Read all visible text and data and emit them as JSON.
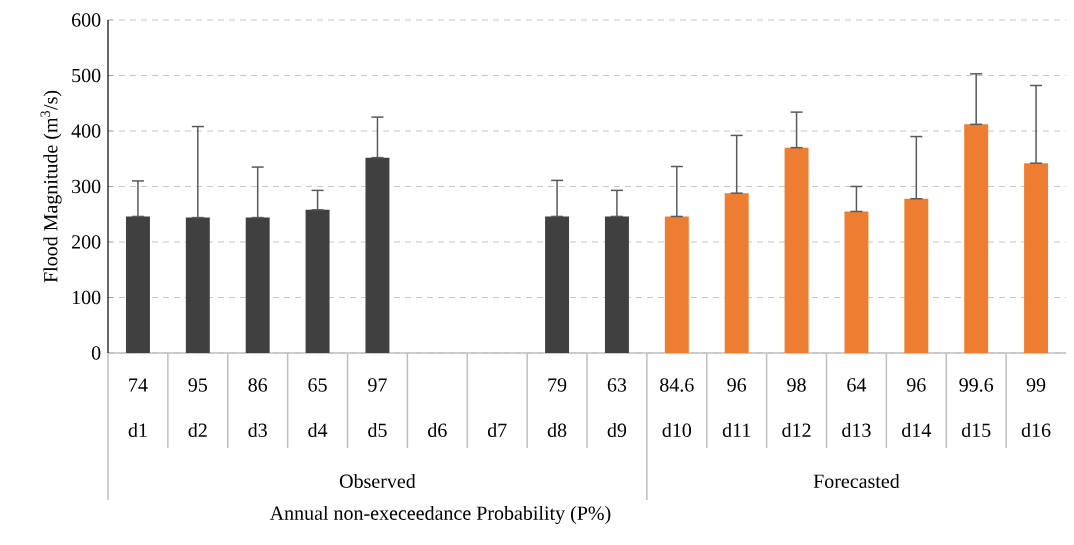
{
  "chart_data": {
    "type": "bar",
    "xlabel": "Annual non-execeedance Probability (P%)",
    "ylabel": "Flood Magnitude (m$^{3}$/s)",
    "categories": [
      "d1",
      "d2",
      "d3",
      "d4",
      "d5",
      "d6",
      "d7",
      "d8",
      "d9",
      "d10",
      "d11",
      "d12",
      "d13",
      "d14",
      "d15",
      "d16"
    ],
    "series": [
      {
        "color": "#404040",
        "values": [
          246,
          244,
          244,
          258,
          352,
          null,
          null,
          246,
          246,
          null,
          null,
          null,
          null,
          null,
          null,
          null
        ],
        "errors": [
          [
            246,
            310
          ],
          [
            244,
            408
          ],
          [
            244,
            335
          ],
          [
            258,
            293
          ],
          [
            352,
            425
          ],
          null,
          null,
          [
            246,
            311
          ],
          [
            246,
            293
          ],
          null,
          null,
          null,
          null,
          null,
          null,
          null
        ]
      },
      {
        "color": "#ed7d31",
        "values": [
          null,
          null,
          null,
          null,
          null,
          null,
          null,
          null,
          null,
          246,
          288,
          370,
          255,
          278,
          412,
          342
        ],
        "errors": [
          null,
          null,
          null,
          null,
          null,
          null,
          null,
          null,
          null,
          [
            246,
            336
          ],
          [
            288,
            392
          ],
          [
            370,
            434
          ],
          [
            255,
            300
          ],
          [
            278,
            390
          ],
          [
            412,
            503
          ],
          [
            342,
            482
          ]
        ]
      }
    ],
    "ylim": [
      0,
      600
    ],
    "yticks": [
      0,
      100,
      200,
      300,
      400,
      500,
      600
    ],
    "grid": true,
    "annotations": [
      "74",
      "95",
      "86",
      "65",
      "97",
      "79",
      "63",
      "84.6",
      "96",
      "98",
      "64",
      "96",
      "99.6",
      "99",
      "Observed",
      "Forecasted"
    ]
  }
}
